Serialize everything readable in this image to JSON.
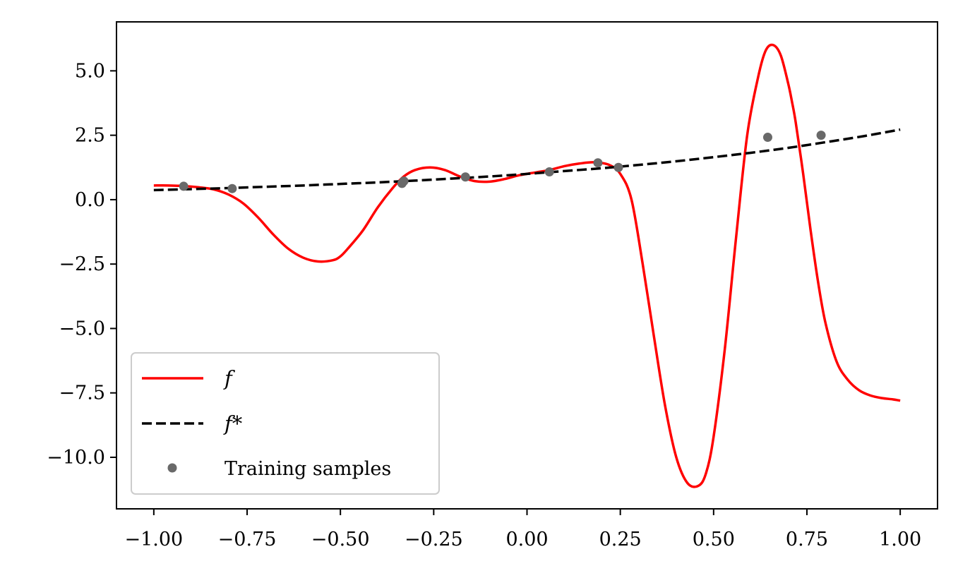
{
  "chart_data": {
    "type": "line",
    "title": "",
    "xlabel": "",
    "ylabel": "",
    "xlim": [
      -1.1,
      1.1
    ],
    "ylim": [
      -12.0,
      6.9
    ],
    "x_ticks": [
      -1.0,
      -0.75,
      -0.5,
      -0.25,
      0.0,
      0.25,
      0.5,
      0.75,
      1.0
    ],
    "x_tick_labels": [
      "−1.00",
      "−0.75",
      "−0.50",
      "−0.25",
      "0.00",
      "0.25",
      "0.50",
      "0.75",
      "1.00"
    ],
    "y_ticks": [
      -10.0,
      -7.5,
      -5.0,
      -2.5,
      0.0,
      2.5,
      5.0
    ],
    "y_tick_labels": [
      "−10.0",
      "−7.5",
      "−5.0",
      "−2.5",
      "0.0",
      "2.5",
      "5.0"
    ],
    "grid": false,
    "legend_position": "lower-left",
    "series": [
      {
        "name": "f",
        "style": "solid",
        "color": "#ff0000",
        "x": [
          -1.0,
          -0.96,
          -0.92,
          -0.88,
          -0.84,
          -0.8,
          -0.76,
          -0.72,
          -0.68,
          -0.64,
          -0.6,
          -0.56,
          -0.52,
          -0.5,
          -0.48,
          -0.44,
          -0.4,
          -0.36,
          -0.33,
          -0.3,
          -0.26,
          -0.22,
          -0.18,
          -0.14,
          -0.1,
          -0.06,
          -0.02,
          0.02,
          0.06,
          0.1,
          0.14,
          0.18,
          0.22,
          0.25,
          0.28,
          0.31,
          0.34,
          0.37,
          0.4,
          0.43,
          0.46,
          0.48,
          0.5,
          0.53,
          0.56,
          0.59,
          0.62,
          0.64,
          0.66,
          0.68,
          0.7,
          0.71,
          0.72,
          0.74,
          0.76,
          0.78,
          0.8,
          0.83,
          0.86,
          0.89,
          0.92,
          0.95,
          0.98,
          1.0
        ],
        "y": [
          0.55,
          0.55,
          0.53,
          0.48,
          0.4,
          0.2,
          -0.15,
          -0.7,
          -1.35,
          -1.9,
          -2.25,
          -2.4,
          -2.35,
          -2.2,
          -1.9,
          -1.2,
          -0.3,
          0.45,
          0.9,
          1.15,
          1.25,
          1.15,
          0.9,
          0.72,
          0.7,
          0.8,
          0.95,
          1.05,
          1.15,
          1.3,
          1.4,
          1.45,
          1.35,
          1.0,
          0.0,
          -2.5,
          -5.3,
          -8.0,
          -10.0,
          -11.0,
          -11.1,
          -10.6,
          -9.2,
          -5.8,
          -1.5,
          2.5,
          4.8,
          5.8,
          6.0,
          5.6,
          4.5,
          3.8,
          3.0,
          1.0,
          -1.2,
          -3.2,
          -4.8,
          -6.3,
          -7.0,
          -7.4,
          -7.6,
          -7.7,
          -7.75,
          -7.8
        ]
      },
      {
        "name": "f*",
        "style": "dashed",
        "color": "#000000",
        "x": [
          -1.0,
          -0.9,
          -0.8,
          -0.7,
          -0.6,
          -0.5,
          -0.4,
          -0.3,
          -0.2,
          -0.1,
          0.0,
          0.1,
          0.2,
          0.3,
          0.4,
          0.5,
          0.6,
          0.7,
          0.8,
          0.9,
          1.0
        ],
        "y": [
          0.37,
          0.41,
          0.45,
          0.5,
          0.55,
          0.61,
          0.67,
          0.74,
          0.82,
          0.9,
          1.0,
          1.11,
          1.22,
          1.35,
          1.49,
          1.65,
          1.82,
          2.01,
          2.23,
          2.46,
          2.72
        ]
      },
      {
        "name": "Training samples",
        "style": "markers",
        "color": "#696969",
        "x": [
          -0.92,
          -0.79,
          -0.335,
          -0.33,
          -0.165,
          0.06,
          0.19,
          0.245,
          0.645,
          0.788
        ],
        "y": [
          0.52,
          0.43,
          0.63,
          0.72,
          0.88,
          1.08,
          1.43,
          1.25,
          2.42,
          2.5
        ]
      }
    ]
  },
  "legend": {
    "items": [
      {
        "label": "f",
        "math": true
      },
      {
        "label": "f*",
        "math": true
      },
      {
        "label": "Training samples",
        "math": false
      }
    ]
  }
}
